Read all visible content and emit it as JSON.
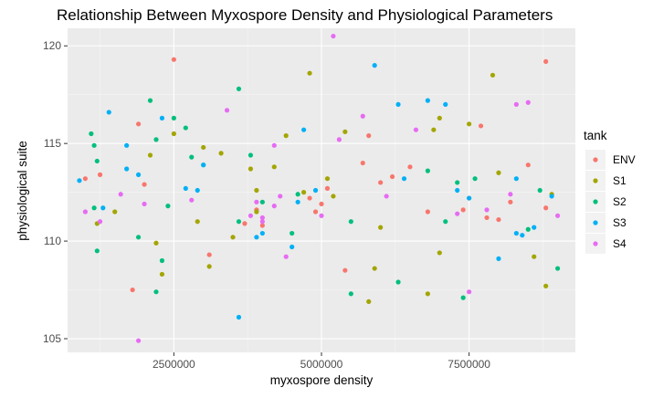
{
  "chart_data": {
    "type": "scatter",
    "title": "Relationship Between Myxospore Density and Physiological Parameters",
    "xlabel": "myxospore density",
    "ylabel": "physiological suite",
    "xlim": [
      700000,
      9300000
    ],
    "ylim": [
      104.3,
      120.9
    ],
    "x_ticks": [
      2500000,
      5000000,
      7500000
    ],
    "x_tick_labels": [
      "2500000",
      "5000000",
      "7500000"
    ],
    "y_ticks": [
      105,
      110,
      115,
      120
    ],
    "y_tick_labels": [
      "105",
      "110",
      "115",
      "120"
    ],
    "grid": true,
    "legend_title": "tank",
    "legend_position": "right",
    "series": [
      {
        "name": "ENV",
        "color": "#F8766D",
        "points": [
          [
            1000000,
            113.2
          ],
          [
            1250000,
            113.4
          ],
          [
            1900000,
            116.0
          ],
          [
            2500000,
            119.3
          ],
          [
            2000000,
            112.9
          ],
          [
            1800000,
            107.5
          ],
          [
            3100000,
            109.3
          ],
          [
            3700000,
            110.9
          ],
          [
            3900000,
            111.6
          ],
          [
            4800000,
            112.2
          ],
          [
            4900000,
            111.5
          ],
          [
            5000000,
            111.9
          ],
          [
            5100000,
            112.7
          ],
          [
            5400000,
            108.5
          ],
          [
            5700000,
            114.0
          ],
          [
            5800000,
            115.4
          ],
          [
            6000000,
            113.0
          ],
          [
            6200000,
            113.3
          ],
          [
            6500000,
            113.8
          ],
          [
            6800000,
            111.5
          ],
          [
            7400000,
            111.6
          ],
          [
            7700000,
            115.9
          ],
          [
            7800000,
            111.2
          ],
          [
            8000000,
            111.1
          ],
          [
            8200000,
            112.0
          ],
          [
            8500000,
            113.9
          ],
          [
            8800000,
            119.2
          ],
          [
            8800000,
            111.7
          ],
          [
            4000000,
            110.8
          ],
          [
            7500000,
            112.2
          ]
        ]
      },
      {
        "name": "S1",
        "color": "#A3A500",
        "points": [
          [
            1200000,
            110.9
          ],
          [
            1500000,
            111.5
          ],
          [
            2100000,
            114.4
          ],
          [
            2200000,
            109.9
          ],
          [
            2300000,
            108.3
          ],
          [
            2500000,
            115.5
          ],
          [
            2900000,
            111.0
          ],
          [
            3000000,
            114.8
          ],
          [
            3100000,
            108.7
          ],
          [
            3300000,
            114.5
          ],
          [
            3500000,
            110.2
          ],
          [
            3800000,
            113.7
          ],
          [
            3900000,
            112.6
          ],
          [
            4200000,
            113.8
          ],
          [
            4400000,
            115.4
          ],
          [
            4700000,
            112.5
          ],
          [
            4800000,
            118.6
          ],
          [
            5100000,
            113.2
          ],
          [
            5200000,
            112.3
          ],
          [
            5400000,
            115.6
          ],
          [
            5800000,
            106.9
          ],
          [
            5900000,
            108.6
          ],
          [
            6800000,
            107.3
          ],
          [
            6900000,
            115.7
          ],
          [
            7000000,
            116.3
          ],
          [
            7000000,
            109.4
          ],
          [
            7500000,
            116.0
          ],
          [
            7900000,
            118.5
          ],
          [
            8000000,
            113.5
          ],
          [
            8600000,
            109.2
          ],
          [
            8800000,
            107.7
          ],
          [
            8900000,
            112.4
          ],
          [
            3900000,
            111.5
          ],
          [
            6000000,
            110.7
          ]
        ]
      },
      {
        "name": "S2",
        "color": "#00BF7D",
        "points": [
          [
            1100000,
            115.5
          ],
          [
            1150000,
            114.9
          ],
          [
            1200000,
            114.1
          ],
          [
            1200000,
            109.5
          ],
          [
            1900000,
            110.2
          ],
          [
            2100000,
            117.2
          ],
          [
            2200000,
            115.2
          ],
          [
            2200000,
            107.4
          ],
          [
            2300000,
            109.0
          ],
          [
            2500000,
            116.3
          ],
          [
            2700000,
            115.8
          ],
          [
            2800000,
            114.3
          ],
          [
            3000000,
            113.9
          ],
          [
            3600000,
            117.8
          ],
          [
            3600000,
            111.0
          ],
          [
            3800000,
            114.4
          ],
          [
            4000000,
            112.0
          ],
          [
            4500000,
            110.4
          ],
          [
            4600000,
            112.4
          ],
          [
            5500000,
            111.0
          ],
          [
            5500000,
            107.3
          ],
          [
            6300000,
            107.9
          ],
          [
            6800000,
            113.6
          ],
          [
            7100000,
            111.0
          ],
          [
            7300000,
            113.0
          ],
          [
            7400000,
            107.1
          ],
          [
            7600000,
            113.2
          ],
          [
            8500000,
            110.6
          ],
          [
            8700000,
            112.6
          ],
          [
            9000000,
            108.6
          ],
          [
            1150000,
            111.7
          ],
          [
            2400000,
            111.8
          ]
        ]
      },
      {
        "name": "S3",
        "color": "#00B0F6",
        "points": [
          [
            900000,
            113.1
          ],
          [
            1300000,
            111.7
          ],
          [
            1400000,
            116.6
          ],
          [
            1700000,
            114.9
          ],
          [
            1700000,
            113.7
          ],
          [
            1900000,
            113.4
          ],
          [
            2300000,
            116.3
          ],
          [
            2700000,
            112.7
          ],
          [
            2900000,
            112.6
          ],
          [
            3000000,
            113.9
          ],
          [
            3600000,
            106.1
          ],
          [
            3900000,
            110.2
          ],
          [
            4000000,
            110.4
          ],
          [
            4600000,
            112.0
          ],
          [
            4700000,
            115.7
          ],
          [
            4900000,
            112.6
          ],
          [
            5900000,
            119.0
          ],
          [
            6300000,
            117.0
          ],
          [
            6400000,
            113.2
          ],
          [
            6800000,
            117.2
          ],
          [
            7100000,
            117.0
          ],
          [
            7300000,
            112.6
          ],
          [
            7500000,
            112.2
          ],
          [
            8000000,
            109.1
          ],
          [
            8300000,
            110.4
          ],
          [
            8400000,
            110.3
          ],
          [
            8600000,
            110.7
          ],
          [
            8900000,
            112.3
          ],
          [
            8300000,
            113.2
          ],
          [
            4500000,
            109.7
          ]
        ]
      },
      {
        "name": "S4",
        "color": "#E76BF3",
        "points": [
          [
            1000000,
            111.5
          ],
          [
            1250000,
            111.0
          ],
          [
            1600000,
            112.4
          ],
          [
            1900000,
            104.9
          ],
          [
            2000000,
            111.9
          ],
          [
            2800000,
            112.1
          ],
          [
            3400000,
            116.7
          ],
          [
            3800000,
            111.3
          ],
          [
            3900000,
            112.0
          ],
          [
            4000000,
            111.2
          ],
          [
            4200000,
            111.8
          ],
          [
            4200000,
            114.9
          ],
          [
            4300000,
            112.3
          ],
          [
            4400000,
            109.2
          ],
          [
            5000000,
            111.3
          ],
          [
            5200000,
            120.5
          ],
          [
            5300000,
            115.2
          ],
          [
            5700000,
            116.4
          ],
          [
            6600000,
            115.7
          ],
          [
            7300000,
            111.4
          ],
          [
            7500000,
            107.4
          ],
          [
            7800000,
            111.6
          ],
          [
            8300000,
            117.0
          ],
          [
            8500000,
            117.1
          ],
          [
            9000000,
            111.3
          ],
          [
            8200000,
            112.4
          ],
          [
            6100000,
            112.3
          ],
          [
            4000000,
            111.0
          ]
        ]
      }
    ]
  }
}
